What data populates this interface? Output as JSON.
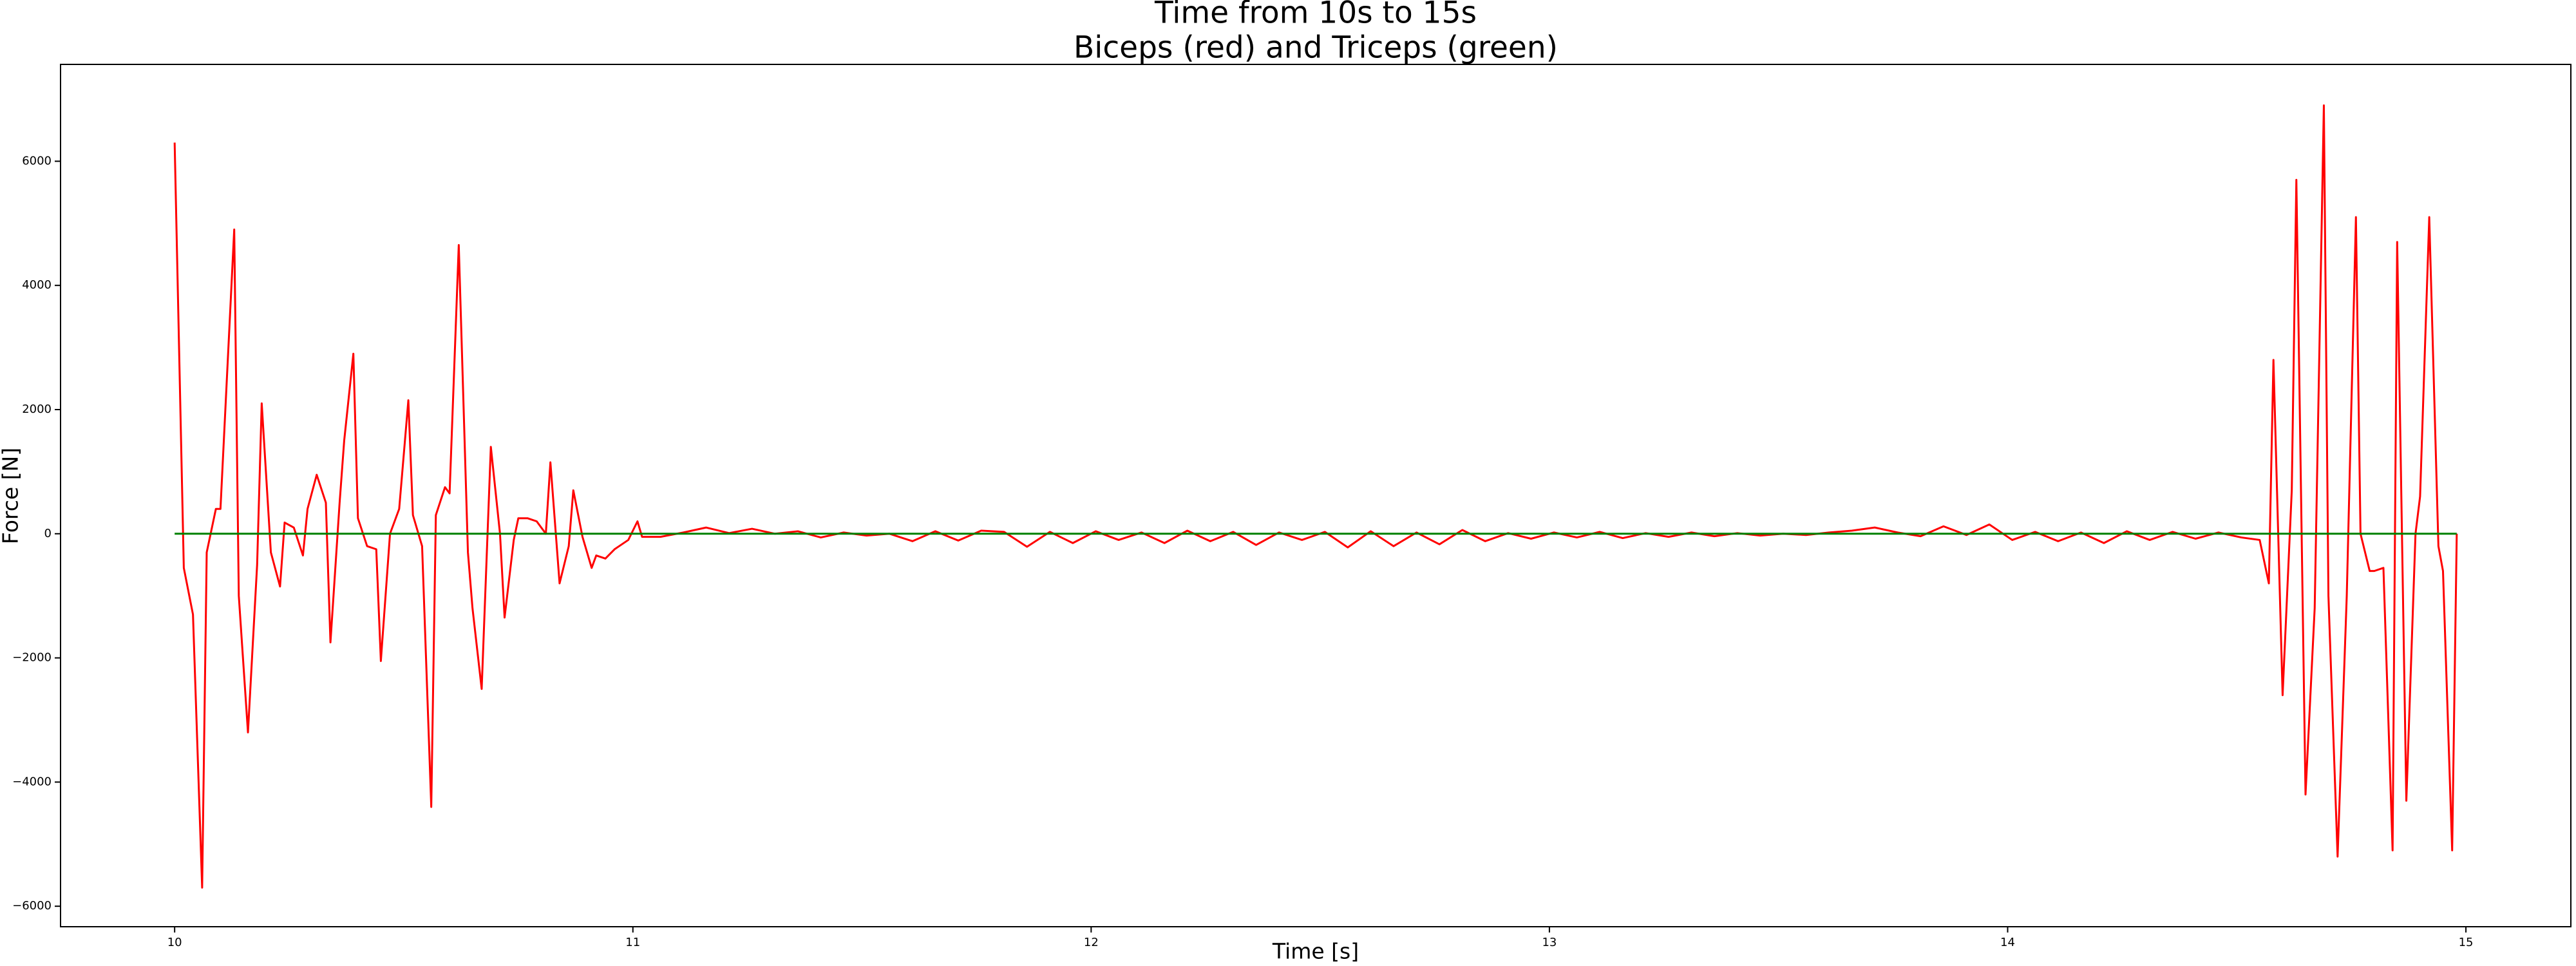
{
  "chart_data": {
    "type": "line",
    "title": "Time from 10s to 15s",
    "subtitle": "Biceps (red) and Triceps (green)",
    "x_label": "Time [s]",
    "y_label": "Force [N]",
    "xlim": [
      9.751,
      15.229
    ],
    "ylim": [
      -6330,
      7560
    ],
    "xticks": [
      10,
      11,
      12,
      13,
      14,
      15
    ],
    "yticks": [
      {
        "value": -6000,
        "label": "−6000"
      },
      {
        "value": -4000,
        "label": "−4000"
      },
      {
        "value": -2000,
        "label": "−2000"
      },
      0,
      2000,
      4000,
      6000
    ],
    "x": [
      10.0,
      10.02,
      10.04,
      10.06,
      10.07,
      10.09,
      10.1,
      10.13,
      10.14,
      10.16,
      10.18,
      10.19,
      10.21,
      10.23,
      10.24,
      10.26,
      10.28,
      10.29,
      10.31,
      10.33,
      10.34,
      10.36,
      10.37,
      10.39,
      10.4,
      10.42,
      10.44,
      10.45,
      10.47,
      10.49,
      10.51,
      10.52,
      10.54,
      10.56,
      10.57,
      10.59,
      10.6,
      10.62,
      10.64,
      10.65,
      10.67,
      10.69,
      10.71,
      10.72,
      10.74,
      10.75,
      10.77,
      10.79,
      10.81,
      10.82,
      10.84,
      10.86,
      10.87,
      10.89,
      10.91,
      10.92,
      10.94,
      10.96,
      10.97,
      10.99,
      11.01,
      11.02,
      11.04,
      11.06,
      11.11,
      11.16,
      11.21,
      11.26,
      11.31,
      11.36,
      11.41,
      11.46,
      11.51,
      11.56,
      11.61,
      11.66,
      11.71,
      11.76,
      11.81,
      11.86,
      11.91,
      11.96,
      12.01,
      12.06,
      12.11,
      12.16,
      12.21,
      12.26,
      12.31,
      12.36,
      12.41,
      12.46,
      12.51,
      12.56,
      12.61,
      12.66,
      12.71,
      12.76,
      12.81,
      12.86,
      12.91,
      12.96,
      13.01,
      13.06,
      13.11,
      13.16,
      13.21,
      13.26,
      13.31,
      13.36,
      13.41,
      13.46,
      13.51,
      13.56,
      13.61,
      13.66,
      13.71,
      13.76,
      13.81,
      13.86,
      13.91,
      13.96,
      14.01,
      14.06,
      14.11,
      14.16,
      14.21,
      14.26,
      14.31,
      14.36,
      14.41,
      14.46,
      14.51,
      14.55,
      14.57,
      14.58,
      14.6,
      14.62,
      14.63,
      14.65,
      14.67,
      14.69,
      14.7,
      14.72,
      14.74,
      14.76,
      14.77,
      14.79,
      14.8,
      14.82,
      14.84,
      14.85,
      14.87,
      14.89,
      14.9,
      14.92,
      14.94,
      14.95,
      14.97,
      14.98
    ],
    "series": [
      {
        "color": "#ff0000",
        "values": [
          6300,
          -550,
          -1300,
          -5700,
          -300,
          400,
          400,
          4900,
          -1000,
          -3200,
          -500,
          2100,
          -300,
          -850,
          180,
          100,
          -350,
          400,
          950,
          500,
          -1750,
          500,
          1500,
          2900,
          250,
          -200,
          -250,
          -2050,
          0,
          400,
          2150,
          300,
          -200,
          -4400,
          300,
          750,
          650,
          4650,
          -300,
          -1200,
          -2500,
          1400,
          0,
          -1350,
          -100,
          250,
          250,
          200,
          0,
          1150,
          -800,
          -200,
          700,
          -50,
          -550,
          -350,
          -400,
          -250,
          -200,
          -100,
          200,
          -50,
          -50,
          -50,
          20,
          100,
          10,
          80,
          0,
          40,
          -60,
          20,
          -30,
          0,
          -120,
          40,
          -110,
          50,
          30,
          -210,
          30,
          -150,
          40,
          -100,
          20,
          -150,
          50,
          -120,
          30,
          -180,
          20,
          -100,
          30,
          -220,
          40,
          -200,
          20,
          -170,
          60,
          -120,
          10,
          -80,
          20,
          -60,
          30,
          -70,
          10,
          -50,
          20,
          -40,
          10,
          -30,
          0,
          -20,
          20,
          50,
          100,
          20,
          -40,
          120,
          -20,
          150,
          -100,
          30,
          -120,
          20,
          -150,
          40,
          -100,
          30,
          -80,
          20,
          -60,
          -100,
          -800,
          2800,
          -2600,
          700,
          5700,
          -4200,
          -1200,
          6900,
          -1000,
          -5200,
          -1000,
          5100,
          0,
          -600,
          -600,
          -550,
          -5100,
          4700,
          -4300,
          0,
          600,
          5100,
          -200,
          -600,
          -5100,
          0
        ]
      },
      {
        "color": "#008000",
        "values": [
          0,
          0,
          0,
          0,
          0,
          0,
          0,
          0,
          0,
          0,
          0,
          0,
          0,
          0,
          0,
          0,
          0,
          0,
          0,
          0,
          0,
          0,
          0,
          0,
          0,
          0,
          0,
          0,
          0,
          0,
          0,
          0,
          0,
          0,
          0,
          0,
          0,
          0,
          0,
          0,
          0,
          0,
          0,
          0,
          0,
          0,
          0,
          0,
          0,
          0,
          0,
          0,
          0,
          0,
          0,
          0,
          0,
          0,
          0,
          0,
          0,
          0,
          0,
          0,
          0,
          0,
          0,
          0,
          0,
          0,
          0,
          0,
          0,
          0,
          0,
          0,
          0,
          0,
          0,
          0,
          0,
          0,
          0,
          0,
          0,
          0,
          0,
          0,
          0,
          0,
          0,
          0,
          0,
          0,
          0,
          0,
          0,
          0,
          0,
          0,
          0,
          0,
          0,
          0,
          0,
          0,
          0,
          0,
          0,
          0,
          0,
          0,
          0,
          0,
          0,
          0,
          0,
          0,
          0,
          0,
          0,
          0,
          0,
          0,
          0,
          0,
          0,
          0,
          0,
          0,
          0,
          0,
          0,
          0,
          0,
          0,
          0,
          0,
          0,
          0,
          0,
          0,
          0,
          0,
          0,
          0,
          0,
          0,
          0,
          0,
          0,
          0,
          0,
          0,
          0,
          0,
          0,
          0,
          0,
          0
        ]
      }
    ]
  }
}
